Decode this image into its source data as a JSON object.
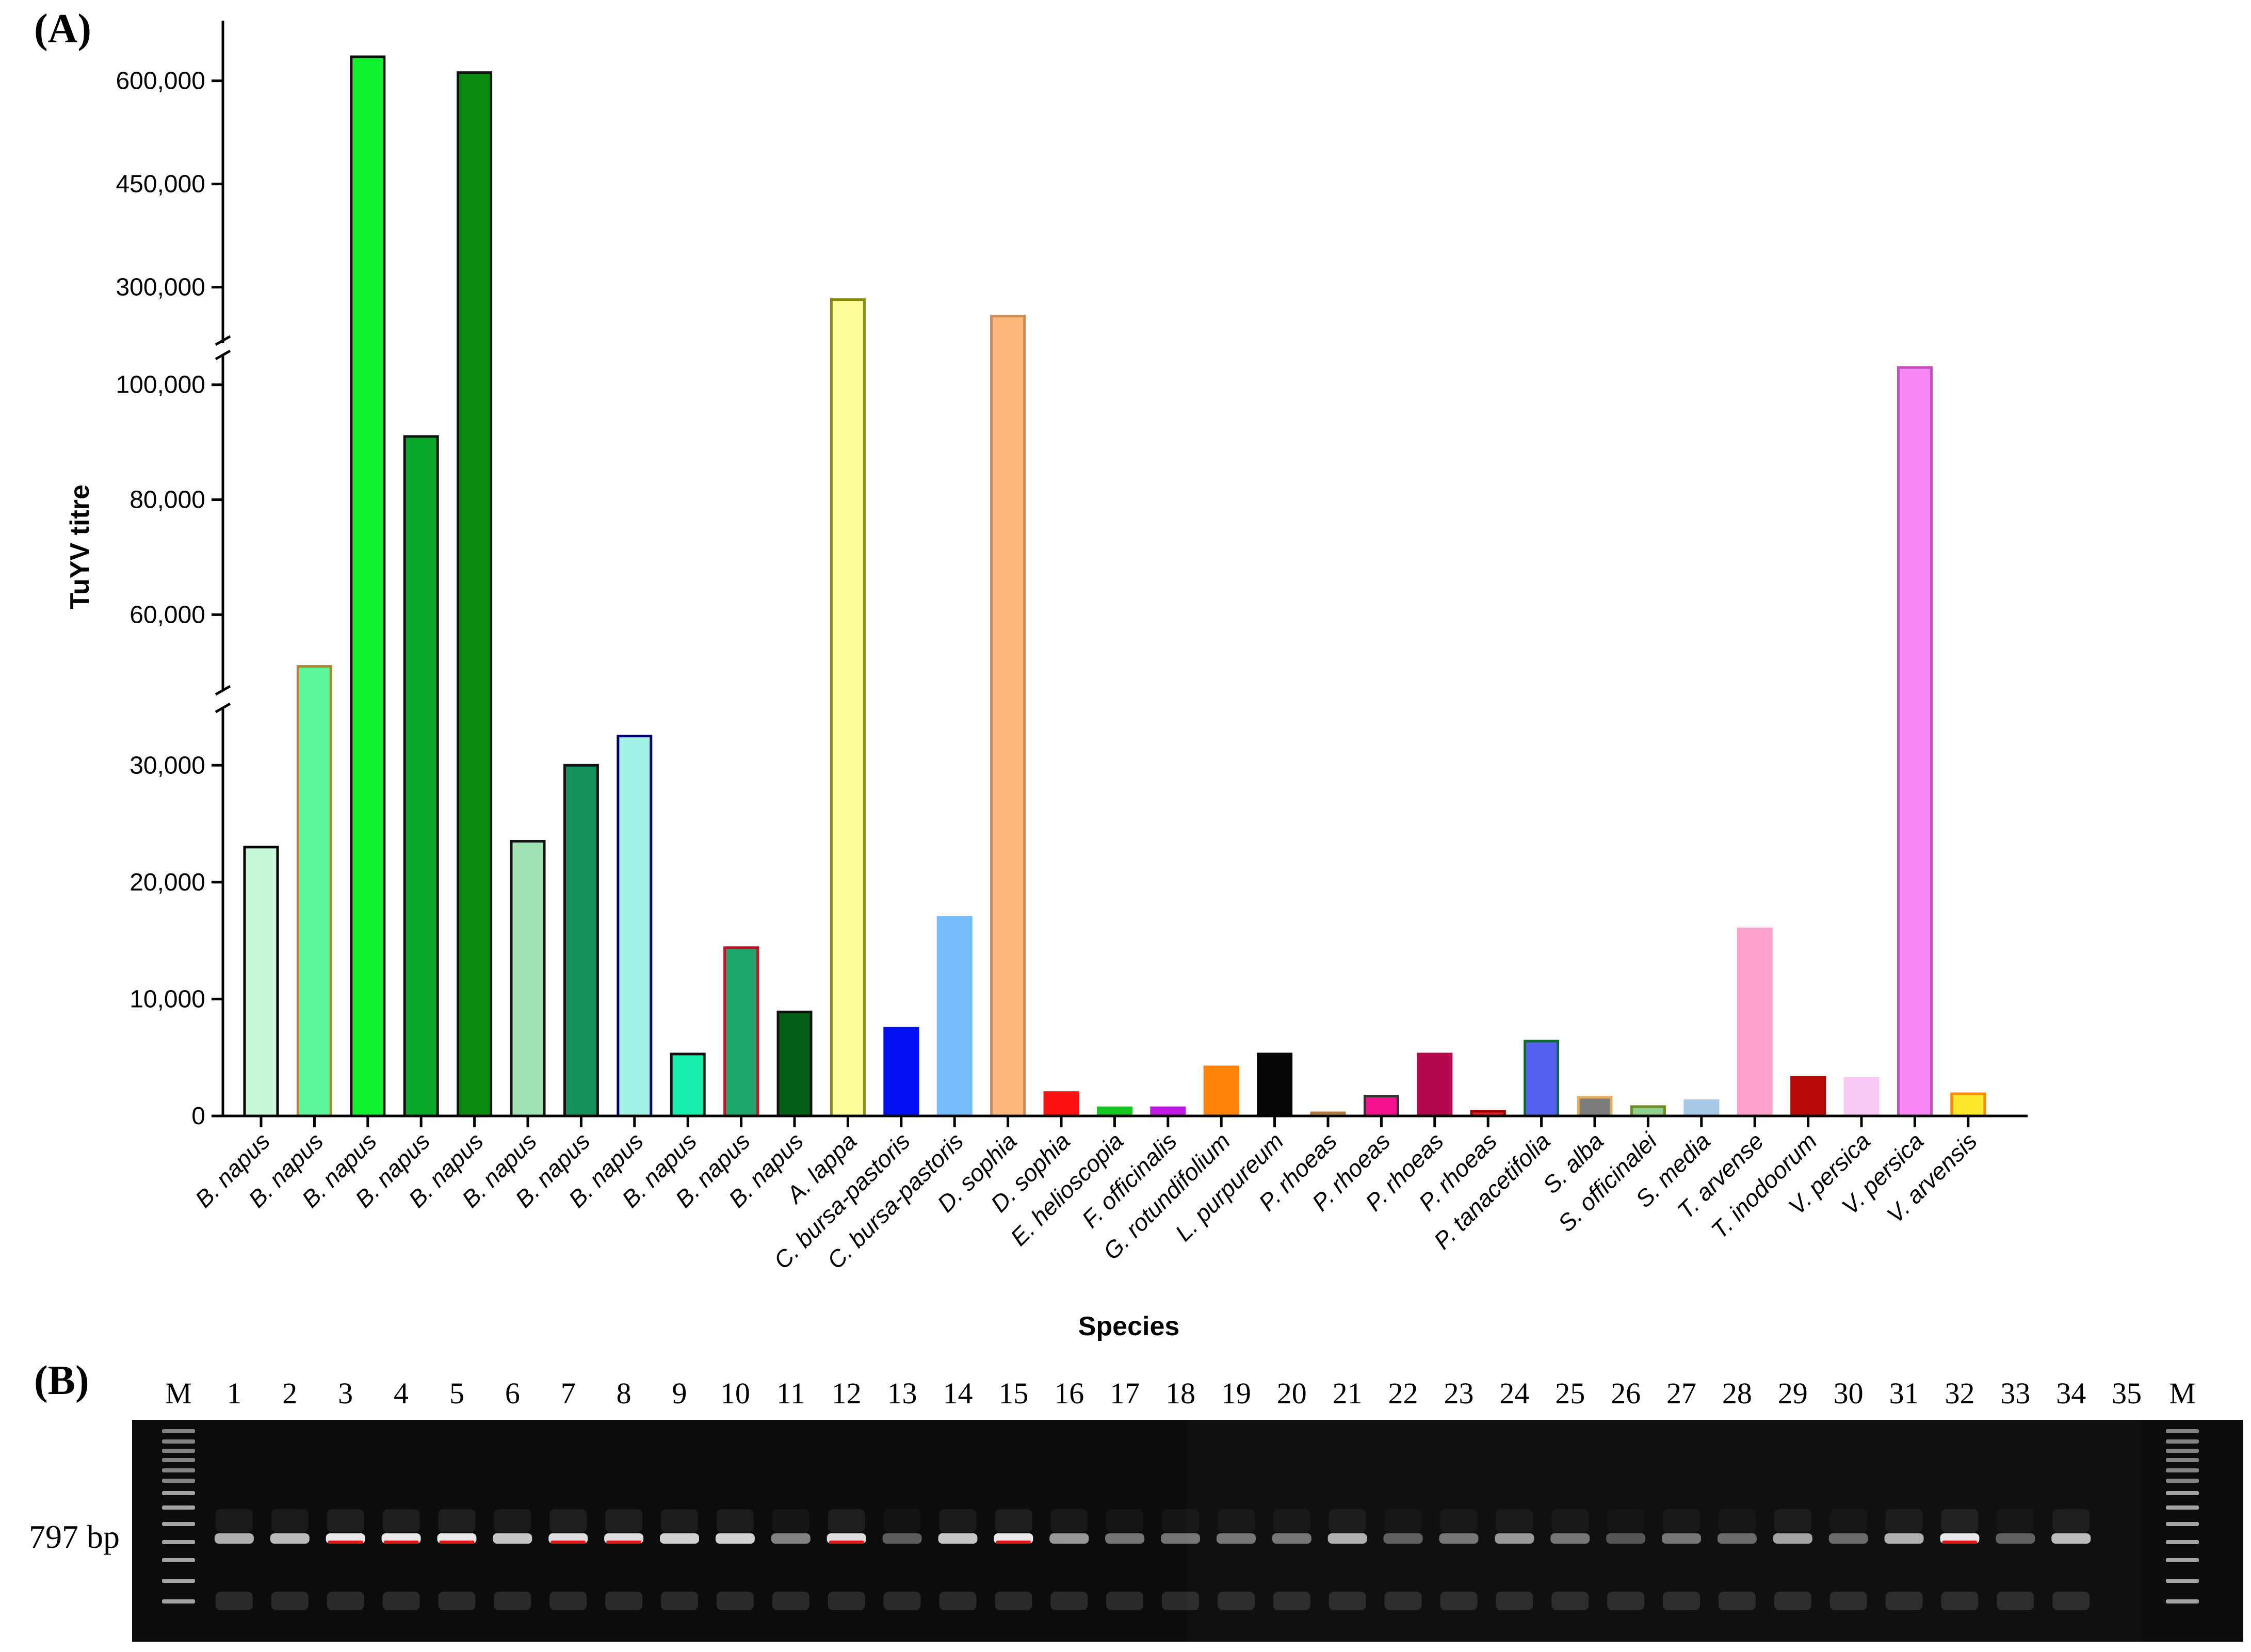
{
  "figure": {
    "label_a": "(A)",
    "label_b": "(B)"
  },
  "chart_data": {
    "type": "bar",
    "title": "",
    "xlabel": "Species",
    "ylabel": "TuYV titre",
    "y_axis_breaks": [
      [
        0,
        35000
      ],
      [
        48000,
        105000
      ],
      [
        230000,
        650000
      ]
    ],
    "yticks": [
      {
        "value": 0,
        "label": "0"
      },
      {
        "value": 10000,
        "label": "10,000"
      },
      {
        "value": 20000,
        "label": "20,000"
      },
      {
        "value": 30000,
        "label": "30,000"
      },
      {
        "value": 60000,
        "label": "60,000"
      },
      {
        "value": 80000,
        "label": "80,000"
      },
      {
        "value": 100000,
        "label": "100,000"
      },
      {
        "value": 300000,
        "label": "300,000"
      },
      {
        "value": 450000,
        "label": "450,000"
      },
      {
        "value": 600000,
        "label": "600,000"
      }
    ],
    "categories": [
      "B. napus",
      "B. napus",
      "B. napus",
      "B. napus",
      "B. napus",
      "B. napus",
      "B. napus",
      "B. napus",
      "B. napus",
      "B. napus",
      "B. napus",
      "A. lappa",
      "C. bursa-pastoris",
      "C. bursa-pastoris",
      "D. sophia",
      "D. sophia",
      "E. helioscopia",
      "F. officinalis",
      "G. rotundifolium",
      "L. purpureum",
      "P. rhoeas",
      "P. rhoeas",
      "P. rhoeas",
      "P. rhoeas",
      "P. tanacetifolia",
      "S. alba",
      "S. officinalei",
      "S. media",
      "T. arvense",
      "T. inodoorum",
      "V. persica",
      "V. persica",
      "V. arvensis"
    ],
    "values": [
      23000,
      51000,
      635000,
      91000,
      612000,
      23500,
      30000,
      32500,
      5300,
      14400,
      8900,
      282000,
      7500,
      17000,
      258000,
      2000,
      700,
      700,
      4200,
      5300,
      200,
      1700,
      5300,
      400,
      6400,
      1600,
      800,
      1300,
      16000,
      3300,
      3200,
      103000,
      1900
    ],
    "colors": [
      "#c9f7d9",
      "#5cf59a",
      "#0ff22f",
      "#0aa82a",
      "#0b8a10",
      "#9ee2b5",
      "#14905d",
      "#a2f2e5",
      "#19f0ad",
      "#1fa66d",
      "#055e17",
      "#fdfd9a",
      "#0410f2",
      "#76bcfb",
      "#fdb87c",
      "#fd1010",
      "#18c722",
      "#c21ae6",
      "#fd8409",
      "#060606",
      "#d9a06c",
      "#f7128d",
      "#b2094c",
      "#e82525",
      "#5562f0",
      "#7d7d7d",
      "#8fd08f",
      "#a6c9e6",
      "#fda0cb",
      "#b90b0b",
      "#f8c9f4",
      "#f586f3",
      "#fde82b"
    ],
    "outlines": [
      "#000000",
      "#b8862a",
      "#111111",
      "#111111",
      "#111111",
      "#111111",
      "#111111",
      "#000070",
      "#111111",
      "#c0162a",
      "#111111",
      "#8a8a0e",
      "#0410f2",
      "#76bcfb",
      "#c98a5a",
      "#fd1010",
      "#18c722",
      "#c21ae6",
      "#fd8409",
      "#060606",
      "#b57838",
      "#333333",
      "#b2094c",
      "#9a0000",
      "#0b6b2c",
      "#e6b060",
      "#6b8a2a",
      "#a6c9e6",
      "#fda0cb",
      "#b90b0b",
      "#f8c9f4",
      "#c24fc0",
      "#ff8c00"
    ]
  },
  "gel": {
    "lane_labels": [
      "M",
      "1",
      "2",
      "3",
      "4",
      "5",
      "6",
      "7",
      "8",
      "9",
      "10",
      "11",
      "12",
      "13",
      "14",
      "15",
      "16",
      "17",
      "18",
      "19",
      "20",
      "21",
      "22",
      "23",
      "24",
      "25",
      "26",
      "27",
      "28",
      "29",
      "30",
      "31",
      "32",
      "33",
      "34",
      "35",
      "M"
    ],
    "band_size_label": "797 bp",
    "band_intensity": [
      0,
      0.7,
      0.75,
      0.95,
      0.95,
      0.95,
      0.8,
      0.9,
      0.9,
      0.85,
      0.85,
      0.5,
      0.9,
      0.35,
      0.8,
      0.95,
      0.6,
      0.45,
      0.45,
      0.45,
      0.45,
      0.7,
      0.35,
      0.45,
      0.6,
      0.45,
      0.3,
      0.45,
      0.4,
      0.65,
      0.4,
      0.7,
      0.95,
      0.35,
      0.75,
      0,
      0
    ]
  }
}
